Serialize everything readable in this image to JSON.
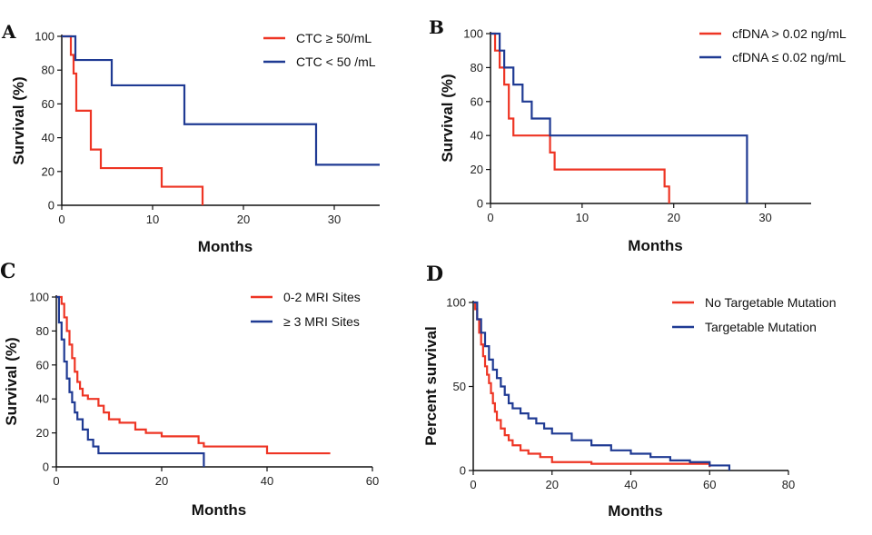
{
  "colors": {
    "red": "#ee3524",
    "blue": "#1f3a93",
    "axis": "#111111"
  },
  "chart_data": [
    {
      "panel": "A",
      "type": "line",
      "step": true,
      "xlabel": "Months",
      "ylabel": "Survival (%)",
      "xlim": [
        0,
        35
      ],
      "ylim": [
        0,
        100
      ],
      "xticks": [
        0,
        10,
        20,
        30
      ],
      "yticks": [
        0,
        20,
        40,
        60,
        80,
        100
      ],
      "series": [
        {
          "name": "CTC ≥ 50/mL",
          "color": "#ee3524",
          "x": [
            0,
            1,
            1.3,
            1.6,
            3.2,
            4.3,
            11,
            15.5
          ],
          "y": [
            100,
            89,
            78,
            56,
            33,
            22,
            11,
            0
          ]
        },
        {
          "name": "CTC < 50 /mL",
          "color": "#1f3a93",
          "x": [
            0,
            1.5,
            5.5,
            13.5,
            28,
            35
          ],
          "y": [
            100,
            86,
            71,
            48,
            24,
            24
          ]
        }
      ]
    },
    {
      "panel": "B",
      "type": "line",
      "step": true,
      "xlabel": "Months",
      "ylabel": "Survival (%)",
      "xlim": [
        0,
        35
      ],
      "ylim": [
        0,
        100
      ],
      "xticks": [
        0,
        10,
        20,
        30
      ],
      "yticks": [
        0,
        20,
        40,
        60,
        80,
        100
      ],
      "series": [
        {
          "name": "cfDNA > 0.02 ng/mL",
          "color": "#ee3524",
          "x": [
            0,
            0.5,
            1,
            1.5,
            2,
            2.5,
            6.5,
            7,
            19,
            19.5
          ],
          "y": [
            100,
            90,
            80,
            70,
            50,
            40,
            30,
            20,
            10,
            0
          ]
        },
        {
          "name": "cfDNA ≤ 0.02 ng/mL",
          "color": "#1f3a93",
          "x": [
            0,
            1,
            1.5,
            2.5,
            3.5,
            4.5,
            6.5,
            8,
            28
          ],
          "y": [
            100,
            90,
            80,
            70,
            60,
            50,
            40,
            40,
            0
          ]
        }
      ]
    },
    {
      "panel": "C",
      "type": "line",
      "step": true,
      "xlabel": "Months",
      "ylabel": "Survival (%)",
      "xlim": [
        0,
        60
      ],
      "ylim": [
        0,
        100
      ],
      "xticks": [
        0,
        20,
        40,
        60
      ],
      "yticks": [
        0,
        20,
        40,
        60,
        80,
        100
      ],
      "series": [
        {
          "name": "0-2 MRI Sites",
          "color": "#ee3524",
          "x": [
            0,
            1,
            1.5,
            2,
            2.5,
            3,
            3.5,
            4,
            4.5,
            5,
            6,
            8,
            9,
            10,
            12,
            15,
            17,
            20,
            27,
            28,
            40,
            52
          ],
          "y": [
            100,
            96,
            88,
            80,
            72,
            64,
            56,
            50,
            46,
            42,
            40,
            36,
            32,
            28,
            26,
            22,
            20,
            18,
            14,
            12,
            8,
            8
          ]
        },
        {
          "name": "≥ 3 MRI Sites",
          "color": "#1f3a93",
          "x": [
            0,
            0.5,
            1,
            1.5,
            2,
            2.5,
            3,
            3.5,
            4,
            5,
            6,
            7,
            8,
            27,
            28
          ],
          "y": [
            100,
            85,
            75,
            62,
            52,
            44,
            38,
            32,
            28,
            22,
            16,
            12,
            8,
            8,
            0
          ]
        }
      ]
    },
    {
      "panel": "D",
      "type": "line",
      "step": true,
      "xlabel": "Months",
      "ylabel": "Percent survival",
      "xlim": [
        0,
        80
      ],
      "ylim": [
        0,
        100
      ],
      "xticks": [
        0,
        20,
        40,
        60,
        80
      ],
      "yticks": [
        0,
        50,
        100
      ],
      "series": [
        {
          "name": "No Targetable Mutation",
          "color": "#ee3524",
          "x": [
            0,
            0.5,
            1,
            1.5,
            2,
            2.5,
            3,
            3.5,
            4,
            4.5,
            5,
            5.5,
            6,
            7,
            8,
            9,
            10,
            12,
            14,
            17,
            20,
            30,
            40,
            50,
            60
          ],
          "y": [
            100,
            96,
            90,
            82,
            75,
            68,
            62,
            57,
            52,
            46,
            40,
            35,
            30,
            25,
            21,
            18,
            15,
            12,
            10,
            8,
            5,
            4,
            4,
            4,
            2
          ]
        },
        {
          "name": "Targetable Mutation",
          "color": "#1f3a93",
          "x": [
            0,
            1,
            2,
            3,
            4,
            5,
            6,
            7,
            8,
            9,
            10,
            12,
            14,
            16,
            18,
            20,
            25,
            30,
            35,
            40,
            45,
            50,
            55,
            60,
            65
          ],
          "y": [
            100,
            90,
            82,
            74,
            66,
            60,
            55,
            50,
            45,
            40,
            37,
            34,
            31,
            28,
            25,
            22,
            18,
            15,
            12,
            10,
            8,
            6,
            5,
            3,
            0
          ]
        }
      ]
    }
  ]
}
